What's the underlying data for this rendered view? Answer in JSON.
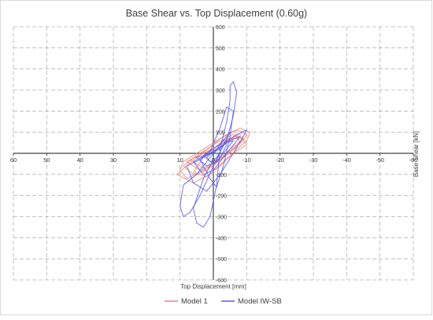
{
  "chart_data": {
    "type": "line",
    "title": "Base Shear vs. Top Displacement (0.60g)",
    "xlabel": "Top Displacement [mm]",
    "ylabel": "Base Shear [kN]",
    "x_axis": {
      "ticks": [
        60,
        50,
        40,
        30,
        20,
        10,
        0,
        -10,
        -20,
        -30,
        -40,
        -50,
        -60
      ],
      "tick_labels": [
        "60",
        "50",
        "40",
        "30",
        "20",
        "10",
        "0",
        "-10",
        "-20",
        "-30",
        "-40",
        "-50",
        "-60"
      ],
      "range": [
        60,
        -60
      ],
      "reversed": true
    },
    "y_axis": {
      "ticks": [
        600,
        500,
        400,
        300,
        200,
        100,
        0,
        -100,
        -200,
        -300,
        -400,
        -500,
        -600
      ],
      "tick_labels": [
        "600",
        "500",
        "400",
        "300",
        "200",
        "100",
        "0",
        "-100",
        "-200",
        "-300",
        "-400",
        "-500",
        "-600"
      ],
      "range": [
        -600,
        600
      ]
    },
    "grid": "dashed",
    "legend_position": "bottom",
    "series": [
      {
        "name": "Model 1",
        "color": "#e8867a",
        "loops": [
          [
            [
              10,
              -80
            ],
            [
              8,
              -120
            ],
            [
              4,
              -90
            ],
            [
              -2,
              -30
            ],
            [
              -6,
              20
            ],
            [
              -9,
              60
            ],
            [
              -10,
              90
            ],
            [
              -7,
              110
            ],
            [
              -2,
              70
            ],
            [
              4,
              10
            ],
            [
              9,
              -40
            ],
            [
              10,
              -80
            ]
          ],
          [
            [
              9,
              -60
            ],
            [
              6,
              -100
            ],
            [
              2,
              -80
            ],
            [
              -3,
              -20
            ],
            [
              -7,
              30
            ],
            [
              -9,
              70
            ],
            [
              -6,
              90
            ],
            [
              -1,
              50
            ],
            [
              5,
              -10
            ],
            [
              9,
              -60
            ]
          ],
          [
            [
              8,
              -40
            ],
            [
              4,
              -80
            ],
            [
              0,
              -60
            ],
            [
              -4,
              0
            ],
            [
              -8,
              50
            ],
            [
              -7,
              80
            ],
            [
              -2,
              40
            ],
            [
              3,
              0
            ],
            [
              8,
              -40
            ]
          ],
          [
            [
              11,
              -100
            ],
            [
              6,
              -140
            ],
            [
              1,
              -100
            ],
            [
              -5,
              -10
            ],
            [
              -10,
              60
            ],
            [
              -11,
              100
            ],
            [
              -8,
              120
            ],
            [
              -3,
              80
            ],
            [
              5,
              -20
            ],
            [
              11,
              -100
            ]
          ],
          [
            [
              7,
              -30
            ],
            [
              3,
              -70
            ],
            [
              -1,
              -40
            ],
            [
              -5,
              20
            ],
            [
              -9,
              70
            ],
            [
              -5,
              70
            ],
            [
              0,
              20
            ],
            [
              7,
              -30
            ]
          ],
          [
            [
              6,
              -90
            ],
            [
              2,
              -110
            ],
            [
              -2,
              -60
            ],
            [
              -6,
              0
            ],
            [
              -10,
              40
            ],
            [
              -8,
              90
            ],
            [
              -3,
              60
            ],
            [
              3,
              -20
            ],
            [
              6,
              -90
            ]
          ]
        ]
      },
      {
        "name": "Model IW-SB",
        "color": "#5b5be6",
        "loops": [
          [
            [
              0,
              -30
            ],
            [
              3,
              -120
            ],
            [
              6,
              -260
            ],
            [
              5,
              -330
            ],
            [
              3,
              -350
            ],
            [
              1,
              -300
            ],
            [
              -1,
              -150
            ],
            [
              -2,
              20
            ],
            [
              -4,
              150
            ],
            [
              -5,
              250
            ],
            [
              -5,
              320
            ],
            [
              -6,
              340
            ],
            [
              -7,
              290
            ],
            [
              -6,
              180
            ],
            [
              -4,
              60
            ],
            [
              -1,
              -20
            ],
            [
              0,
              -30
            ]
          ],
          [
            [
              9,
              -150
            ],
            [
              10,
              -250
            ],
            [
              9,
              -300
            ],
            [
              7,
              -280
            ],
            [
              4,
              -200
            ],
            [
              0,
              -60
            ],
            [
              -3,
              40
            ],
            [
              -5,
              100
            ],
            [
              -4,
              80
            ],
            [
              0,
              0
            ],
            [
              5,
              -100
            ],
            [
              9,
              -150
            ]
          ],
          [
            [
              8,
              -60
            ],
            [
              6,
              -140
            ],
            [
              2,
              -180
            ],
            [
              -2,
              -100
            ],
            [
              -6,
              0
            ],
            [
              -9,
              80
            ],
            [
              -10,
              110
            ],
            [
              -7,
              90
            ],
            [
              -2,
              30
            ],
            [
              4,
              -30
            ],
            [
              8,
              -60
            ]
          ],
          [
            [
              6,
              -40
            ],
            [
              3,
              -100
            ],
            [
              0,
              -80
            ],
            [
              -3,
              -20
            ],
            [
              -6,
              40
            ],
            [
              -8,
              80
            ],
            [
              -5,
              60
            ],
            [
              0,
              10
            ],
            [
              6,
              -40
            ]
          ],
          [
            [
              5,
              -20
            ],
            [
              2,
              -60
            ],
            [
              -1,
              -40
            ],
            [
              -4,
              20
            ],
            [
              -6,
              60
            ],
            [
              -4,
              50
            ],
            [
              0,
              0
            ],
            [
              5,
              -20
            ]
          ],
          [
            [
              4,
              -30
            ],
            [
              1,
              -120
            ],
            [
              -1,
              -160
            ],
            [
              -3,
              -60
            ],
            [
              -5,
              80
            ],
            [
              -6,
              200
            ],
            [
              -4,
              220
            ],
            [
              -2,
              120
            ],
            [
              1,
              10
            ],
            [
              4,
              -30
            ]
          ],
          [
            [
              3,
              -10
            ],
            [
              0,
              -50
            ],
            [
              -2,
              -20
            ],
            [
              -4,
              40
            ],
            [
              -3,
              60
            ],
            [
              0,
              20
            ],
            [
              3,
              -10
            ]
          ],
          [
            [
              2,
              -20
            ],
            [
              1,
              -40
            ],
            [
              -1,
              -30
            ],
            [
              -2,
              0
            ],
            [
              -2,
              20
            ],
            [
              0,
              10
            ],
            [
              2,
              -20
            ]
          ]
        ]
      }
    ]
  }
}
